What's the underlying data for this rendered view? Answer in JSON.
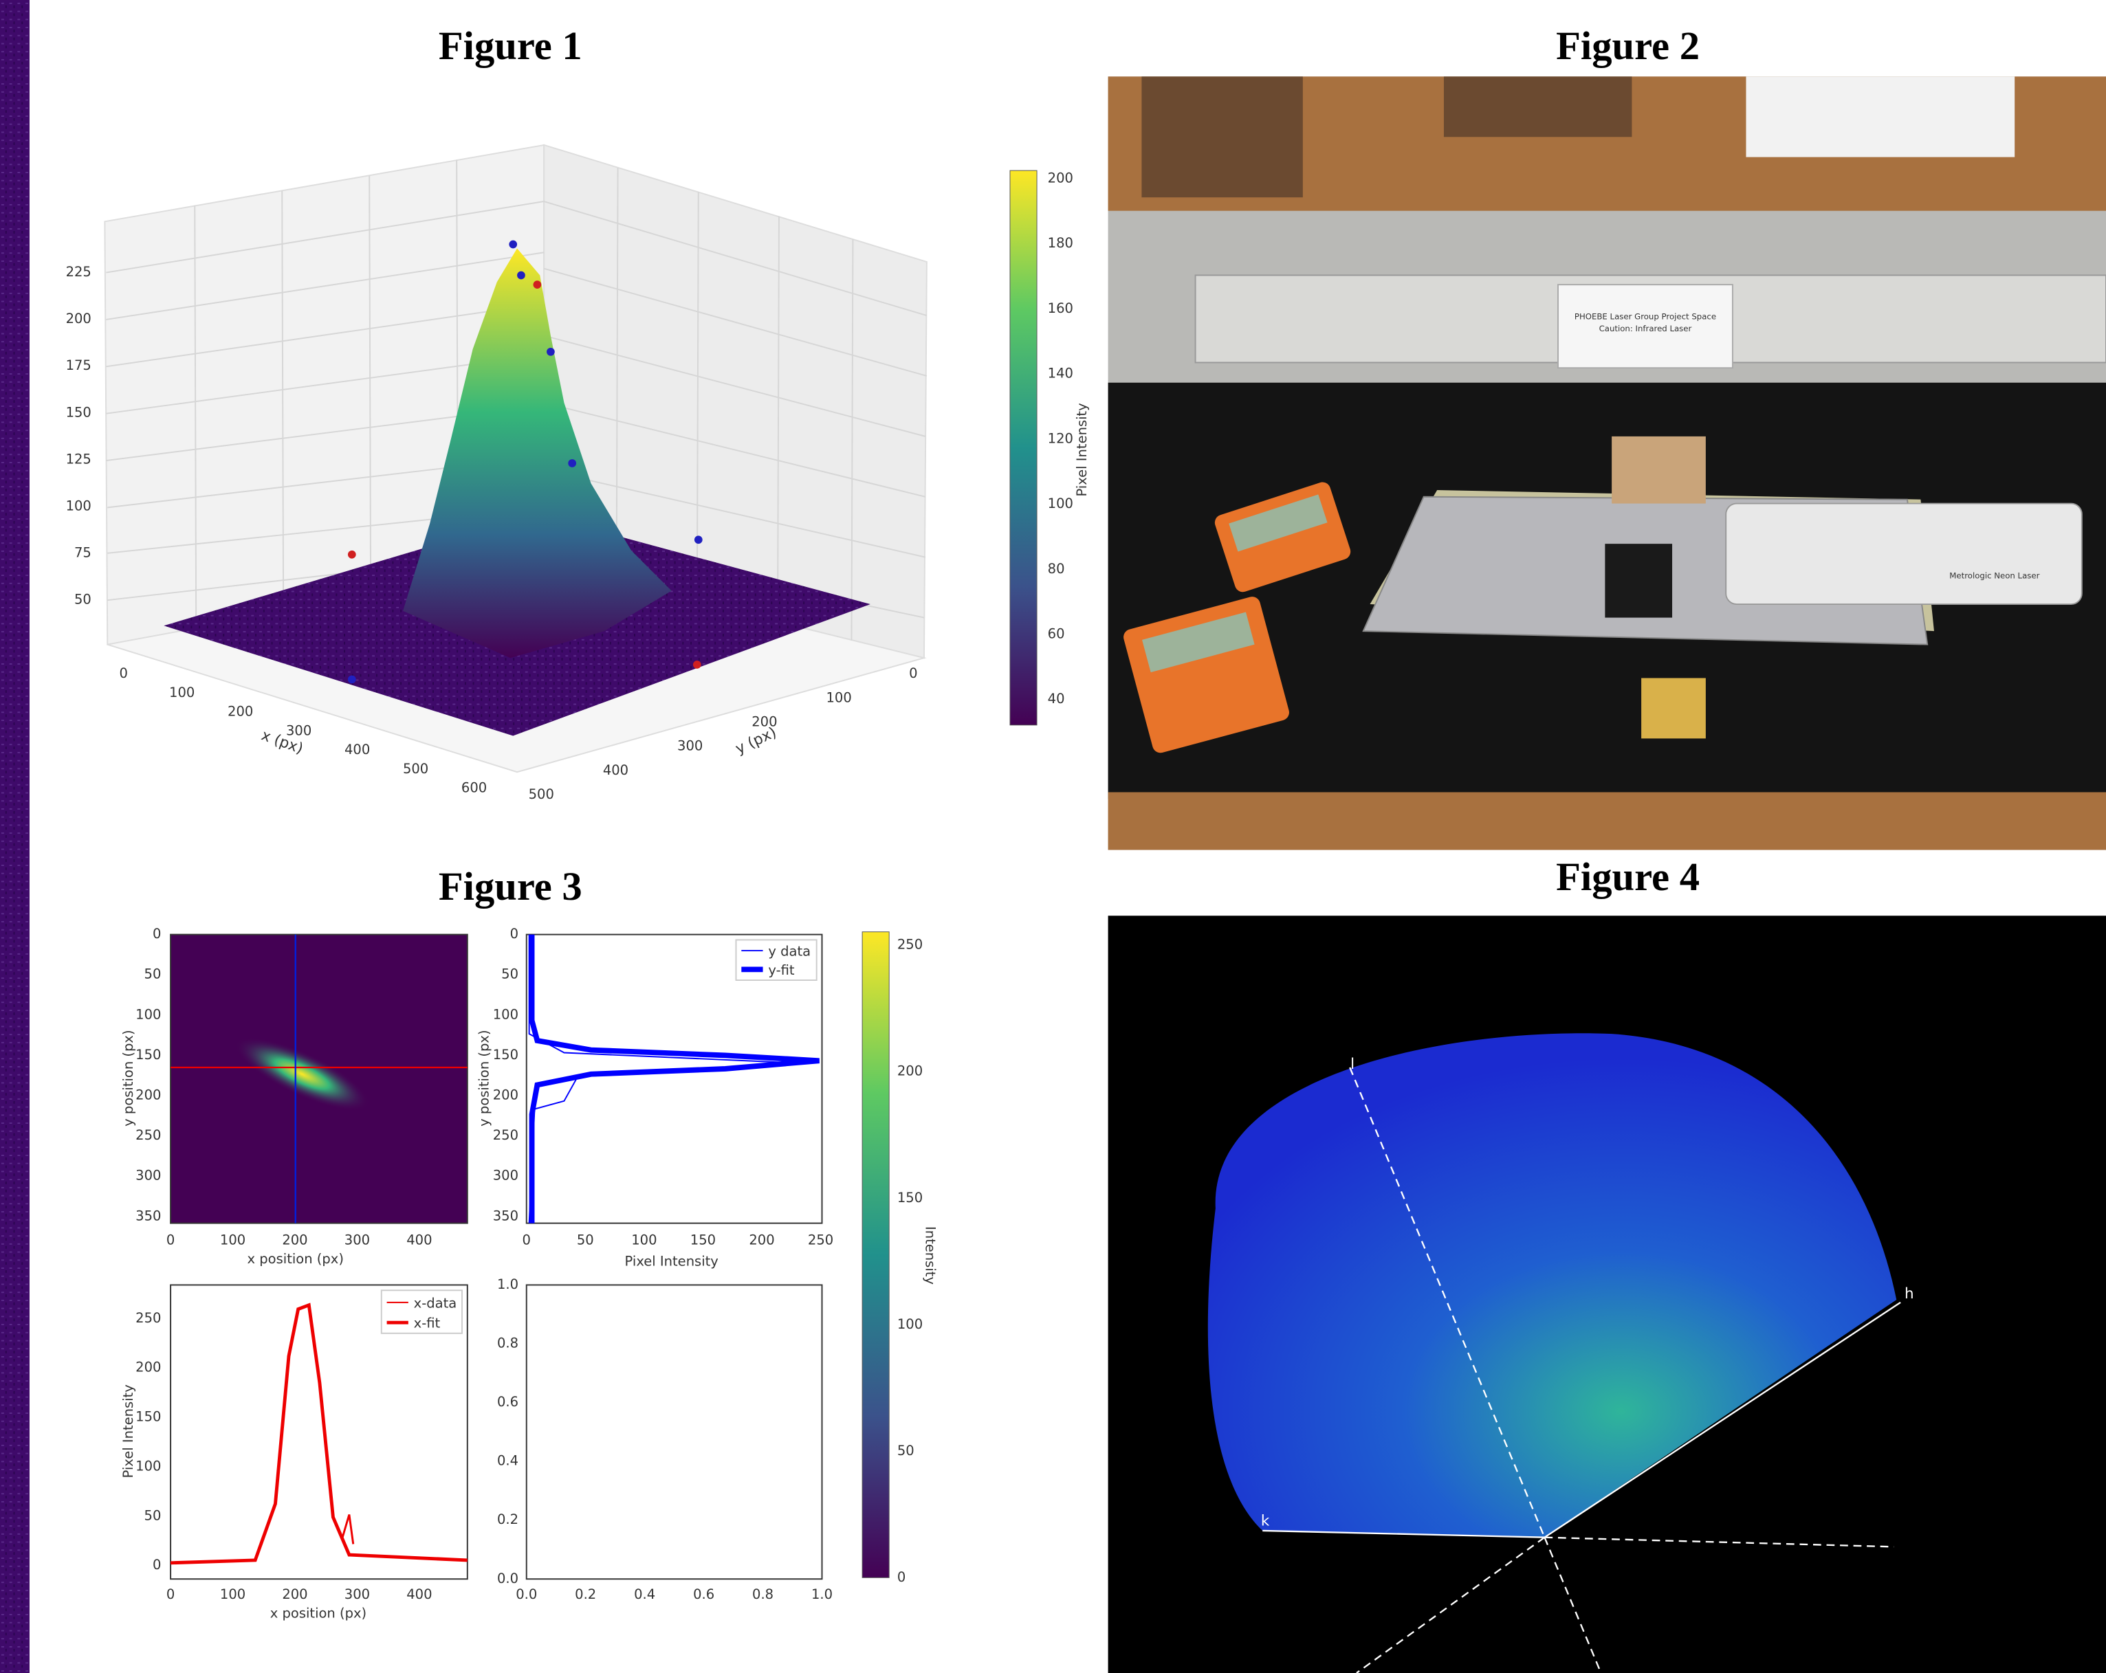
{
  "figure1": {
    "title": "Figure 1",
    "z_ticks": [
      "50",
      "75",
      "100",
      "125",
      "150",
      "175",
      "200",
      "225"
    ],
    "x_ticks": [
      "0",
      "100",
      "200",
      "300",
      "400",
      "500",
      "600"
    ],
    "x_label": "x (px)",
    "y_ticks": [
      "0",
      "100",
      "200",
      "300",
      "400",
      "500"
    ],
    "y_label": "y (px)",
    "colorbar_ticks": [
      "40",
      "60",
      "80",
      "100",
      "120",
      "140",
      "160",
      "180",
      "200"
    ],
    "colorbar_label": "Pixel Intensity"
  },
  "figure2": {
    "title": "Figure 2",
    "sign": [
      "PHOEBE Laser Group Project Space",
      "Caution: Infrared Laser"
    ],
    "laser_label": "Metrologic Neon Laser"
  },
  "figure3": {
    "title": "Figure 3",
    "image_panel": {
      "x_ticks": [
        "0",
        "100",
        "200",
        "300",
        "400"
      ],
      "y_ticks": [
        "0",
        "50",
        "100",
        "150",
        "200",
        "250",
        "300",
        "350"
      ],
      "x_label": "x position (px)",
      "y_label": "y position (px)"
    },
    "y_profile": {
      "x_ticks": [
        "0",
        "50",
        "100",
        "150",
        "200",
        "250"
      ],
      "y_ticks": [
        "0",
        "50",
        "100",
        "150",
        "200",
        "250",
        "300",
        "350"
      ],
      "x_label": "Pixel Intensity",
      "y_label": "y position (px)",
      "legend": [
        "y data",
        "y-fit"
      ]
    },
    "x_profile": {
      "x_ticks": [
        "0",
        "100",
        "200",
        "300",
        "400"
      ],
      "y_ticks": [
        "0",
        "50",
        "100",
        "150",
        "200",
        "250"
      ],
      "x_label": "x position (px)",
      "y_label": "Pixel Intensity",
      "legend": [
        "x-data",
        "x-fit"
      ]
    },
    "empty_panel": {
      "x_ticks": [
        "0.0",
        "0.2",
        "0.4",
        "0.6",
        "0.8",
        "1.0"
      ],
      "y_ticks": [
        "0.0",
        "0.2",
        "0.4",
        "0.6",
        "0.8",
        "1.0"
      ]
    },
    "colorbar_ticks": [
      "0",
      "50",
      "100",
      "150",
      "200",
      "250"
    ],
    "colorbar_label": "Intensity"
  },
  "figure4": {
    "title": "Figure 4",
    "axis_labels": [
      "l",
      "h",
      "k"
    ]
  }
}
